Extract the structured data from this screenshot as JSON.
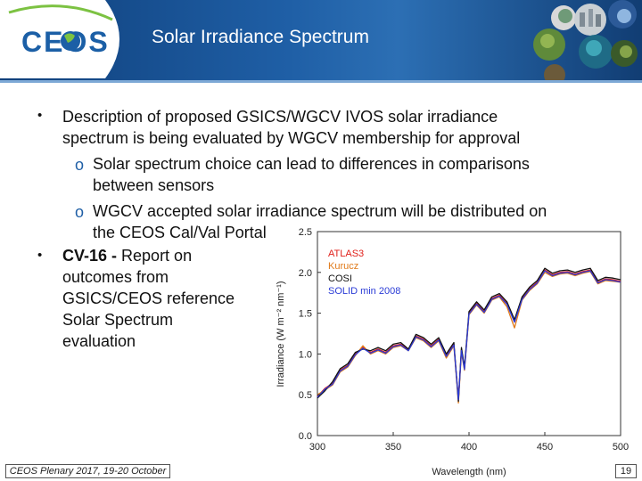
{
  "header": {
    "logo_text": "CEOS",
    "title": "Solar Irradiance Spectrum",
    "colors": {
      "band": "#1f5fa6",
      "logo_blue": "#1b5fa6",
      "logo_green": "#7cc242"
    }
  },
  "bullets": [
    {
      "marker": "•",
      "lines": [
        "Description of proposed GSICS/WGCV IVOS solar irradiance",
        "spectrum is being evaluated by WGCV membership for approval"
      ],
      "sub_bullets": [
        {
          "marker": "o",
          "lines": [
            "Solar spectrum choice can lead to differences in comparisons",
            "between sensors"
          ]
        },
        {
          "marker": "o",
          "lines": [
            "WGCV accepted solar irradiance spectrum will be distributed on",
            "the CEOS Cal/Val Portal"
          ]
        }
      ]
    },
    {
      "marker": "•",
      "bold_lead": "CV-16 -",
      "lines": [
        " Report on",
        "outcomes from",
        "GSICS/CEOS reference",
        "Solar Spectrum",
        "evaluation"
      ]
    }
  ],
  "footer": {
    "event": "CEOS Plenary 2017, 19-20 October",
    "page": "19"
  },
  "chart_data": {
    "type": "line",
    "xlabel": "Wavelength (nm)",
    "ylabel": "Irradiance (W m⁻² nm⁻¹)",
    "xlim": [
      300,
      500
    ],
    "ylim": [
      0.0,
      2.5
    ],
    "xticks": [
      300,
      350,
      400,
      450,
      500
    ],
    "yticks": [
      0.0,
      0.5,
      1.0,
      1.5,
      2.0,
      2.5
    ],
    "x": [
      300,
      305,
      310,
      315,
      320,
      325,
      330,
      335,
      340,
      345,
      350,
      355,
      360,
      365,
      370,
      375,
      380,
      385,
      390,
      393,
      395,
      397,
      400,
      405,
      410,
      415,
      420,
      425,
      430,
      435,
      440,
      445,
      450,
      455,
      460,
      465,
      470,
      475,
      480,
      485,
      490,
      495,
      500
    ],
    "series": [
      {
        "name": "ATLAS3",
        "color": "#e0201a",
        "values": [
          0.48,
          0.58,
          0.64,
          0.8,
          0.86,
          1.0,
          1.08,
          1.02,
          1.06,
          1.02,
          1.1,
          1.12,
          1.05,
          1.22,
          1.18,
          1.1,
          1.18,
          0.98,
          1.12,
          0.45,
          1.05,
          0.82,
          1.5,
          1.62,
          1.52,
          1.68,
          1.72,
          1.62,
          1.4,
          1.68,
          1.8,
          1.88,
          2.03,
          1.97,
          2.0,
          2.01,
          1.98,
          2.01,
          2.03,
          1.88,
          1.92,
          1.91,
          1.89
        ]
      },
      {
        "name": "Kurucz",
        "color": "#e07a1a",
        "values": [
          0.5,
          0.56,
          0.62,
          0.78,
          0.84,
          0.98,
          1.1,
          1.0,
          1.04,
          1.0,
          1.08,
          1.1,
          1.04,
          1.2,
          1.16,
          1.08,
          1.16,
          0.95,
          1.1,
          0.4,
          1.02,
          0.8,
          1.48,
          1.6,
          1.5,
          1.66,
          1.7,
          1.58,
          1.32,
          1.66,
          1.78,
          1.86,
          2.0,
          1.95,
          1.98,
          1.99,
          1.96,
          1.99,
          2.01,
          1.86,
          1.9,
          1.89,
          1.88
        ]
      },
      {
        "name": "COSI",
        "color": "#111111",
        "values": [
          0.46,
          0.55,
          0.66,
          0.82,
          0.88,
          1.02,
          1.06,
          1.04,
          1.08,
          1.04,
          1.12,
          1.14,
          1.06,
          1.24,
          1.2,
          1.12,
          1.2,
          1.0,
          1.14,
          0.42,
          1.08,
          0.84,
          1.52,
          1.64,
          1.54,
          1.7,
          1.74,
          1.64,
          1.42,
          1.7,
          1.82,
          1.9,
          2.05,
          1.99,
          2.02,
          2.03,
          2.0,
          2.03,
          2.05,
          1.9,
          1.94,
          1.93,
          1.91
        ]
      },
      {
        "name": "SOLID min 2008",
        "color": "#2a3bd6",
        "values": [
          0.47,
          0.57,
          0.63,
          0.79,
          0.85,
          0.99,
          1.07,
          1.01,
          1.05,
          1.01,
          1.09,
          1.11,
          1.04,
          1.21,
          1.17,
          1.09,
          1.17,
          0.97,
          1.11,
          0.44,
          1.04,
          0.81,
          1.49,
          1.61,
          1.51,
          1.67,
          1.71,
          1.61,
          1.39,
          1.67,
          1.79,
          1.87,
          2.02,
          1.96,
          1.99,
          2.0,
          1.97,
          2.0,
          2.02,
          1.87,
          1.91,
          1.9,
          1.88
        ]
      }
    ]
  }
}
